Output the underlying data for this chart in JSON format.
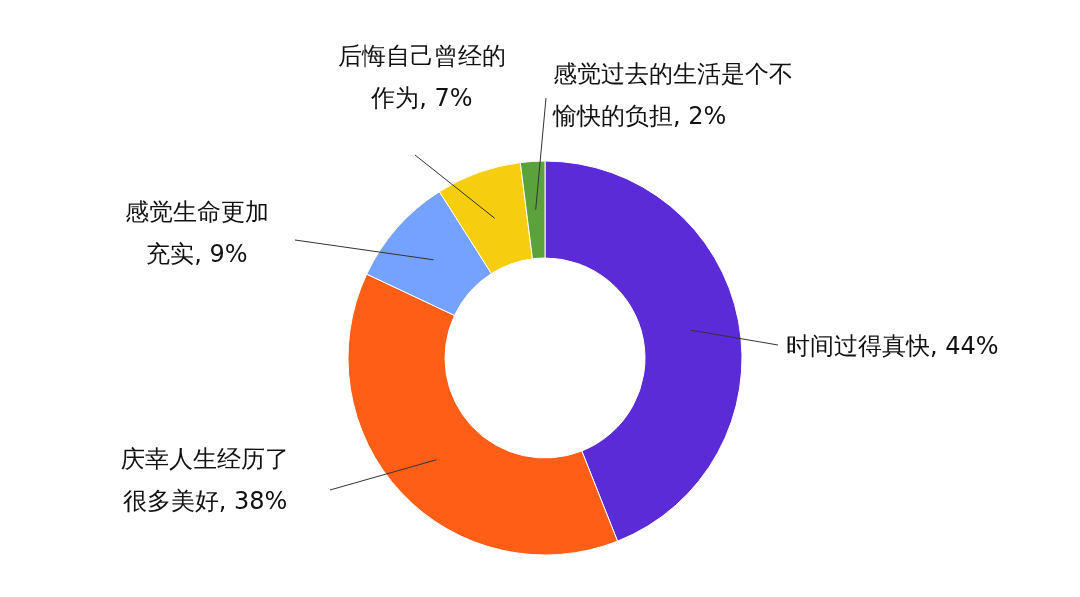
{
  "chart_data": {
    "type": "donut",
    "categories": [
      "时间过得真快",
      "庆幸人生经历了很多美好",
      "感觉生命更加充实",
      "后悔自己曾经的作为",
      "感觉过去的生活是个不愉快的负担"
    ],
    "values": [
      44,
      38,
      9,
      7,
      2
    ],
    "value_labels": [
      "44%",
      "38%",
      "9%",
      "7%",
      "2%"
    ],
    "colors": [
      "#5a2bd6",
      "#ff5e17",
      "#75a1ff",
      "#f7cd10",
      "#5ba13c"
    ]
  }
}
